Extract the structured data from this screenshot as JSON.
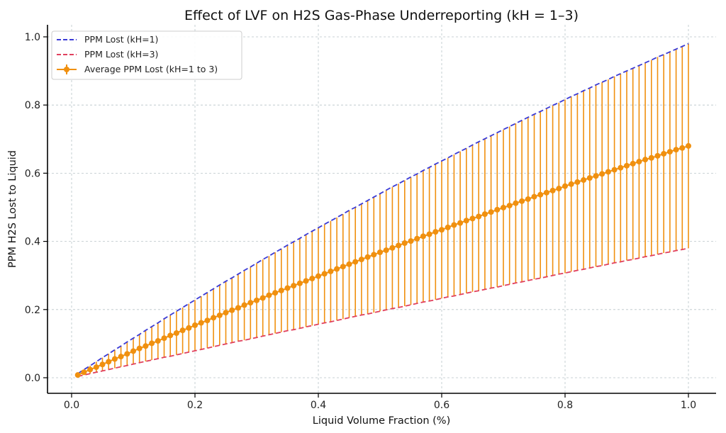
{
  "chart_data": {
    "type": "line",
    "title": "Effect of LVF on H2S Gas-Phase Underreporting (kH = 1–3)",
    "xlabel": "Liquid Volume Fraction (%)",
    "ylabel": "PPM H2S Lost to Liquid",
    "xlim": [
      -0.03,
      1.035
    ],
    "ylim": [
      -0.045,
      1.03
    ],
    "xticks": [
      "0.0",
      "0.2",
      "0.4",
      "0.6",
      "0.8",
      "1.0"
    ],
    "yticks": [
      "0.0",
      "0.2",
      "0.4",
      "0.6",
      "0.8",
      "1.0"
    ],
    "grid": true,
    "legend_position": "top-left",
    "x": [
      0.01,
      0.02,
      0.03,
      0.04,
      0.05,
      0.06,
      0.07,
      0.08,
      0.09,
      0.1,
      0.11,
      0.12,
      0.13,
      0.14,
      0.15,
      0.16,
      0.17,
      0.18,
      0.19,
      0.2,
      0.21,
      0.22,
      0.23,
      0.24,
      0.25,
      0.26,
      0.27,
      0.28,
      0.29,
      0.3,
      0.31,
      0.32,
      0.33,
      0.34,
      0.35,
      0.36,
      0.37,
      0.38,
      0.39,
      0.4,
      0.41,
      0.42,
      0.43,
      0.44,
      0.45,
      0.46,
      0.47,
      0.48,
      0.49,
      0.5,
      0.51,
      0.52,
      0.53,
      0.54,
      0.55,
      0.56,
      0.57,
      0.58,
      0.59,
      0.6,
      0.61,
      0.62,
      0.63,
      0.64,
      0.65,
      0.66,
      0.67,
      0.68,
      0.69,
      0.7,
      0.71,
      0.72,
      0.73,
      0.74,
      0.75,
      0.76,
      0.77,
      0.78,
      0.79,
      0.8,
      0.81,
      0.82,
      0.83,
      0.84,
      0.85,
      0.86,
      0.87,
      0.88,
      0.89,
      0.9,
      0.91,
      0.92,
      0.93,
      0.94,
      0.95,
      0.96,
      0.97,
      0.98,
      0.99,
      1.0
    ],
    "series": [
      {
        "name": "PPM Lost (kH=1)",
        "style": "dashed",
        "color": "#3b3bd6",
        "values": [
          0.012,
          0.024,
          0.035,
          0.047,
          0.059,
          0.07,
          0.082,
          0.093,
          0.105,
          0.116,
          0.127,
          0.139,
          0.15,
          0.161,
          0.173,
          0.184,
          0.195,
          0.206,
          0.217,
          0.228,
          0.239,
          0.25,
          0.261,
          0.272,
          0.283,
          0.293,
          0.304,
          0.315,
          0.325,
          0.336,
          0.347,
          0.357,
          0.368,
          0.378,
          0.389,
          0.399,
          0.409,
          0.42,
          0.43,
          0.44,
          0.45,
          0.46,
          0.47,
          0.48,
          0.491,
          0.5,
          0.51,
          0.52,
          0.53,
          0.54,
          0.55,
          0.56,
          0.569,
          0.579,
          0.589,
          0.598,
          0.608,
          0.617,
          0.627,
          0.636,
          0.645,
          0.655,
          0.664,
          0.673,
          0.683,
          0.692,
          0.701,
          0.71,
          0.719,
          0.728,
          0.737,
          0.746,
          0.755,
          0.764,
          0.773,
          0.781,
          0.79,
          0.799,
          0.807,
          0.816,
          0.825,
          0.833,
          0.842,
          0.85,
          0.859,
          0.867,
          0.875,
          0.884,
          0.892,
          0.9,
          0.908,
          0.916,
          0.924,
          0.932,
          0.941,
          0.948,
          0.956,
          0.964,
          0.972,
          0.98
        ]
      },
      {
        "name": "PPM Lost (kH=3)",
        "style": "dashed",
        "color": "#e0405e",
        "values": [
          0.004,
          0.008,
          0.012,
          0.016,
          0.02,
          0.024,
          0.028,
          0.032,
          0.036,
          0.04,
          0.044,
          0.048,
          0.052,
          0.056,
          0.06,
          0.063,
          0.067,
          0.071,
          0.075,
          0.079,
          0.083,
          0.087,
          0.091,
          0.095,
          0.099,
          0.103,
          0.107,
          0.11,
          0.114,
          0.118,
          0.122,
          0.126,
          0.13,
          0.134,
          0.138,
          0.141,
          0.145,
          0.149,
          0.153,
          0.157,
          0.161,
          0.164,
          0.168,
          0.172,
          0.176,
          0.18,
          0.184,
          0.187,
          0.191,
          0.195,
          0.199,
          0.203,
          0.206,
          0.21,
          0.214,
          0.218,
          0.222,
          0.225,
          0.229,
          0.233,
          0.237,
          0.24,
          0.244,
          0.248,
          0.252,
          0.255,
          0.259,
          0.263,
          0.266,
          0.27,
          0.274,
          0.278,
          0.281,
          0.285,
          0.289,
          0.292,
          0.296,
          0.3,
          0.304,
          0.307,
          0.311,
          0.315,
          0.318,
          0.322,
          0.326,
          0.329,
          0.333,
          0.337,
          0.34,
          0.344,
          0.347,
          0.351,
          0.355,
          0.358,
          0.362,
          0.366,
          0.369,
          0.373,
          0.376,
          0.38
        ]
      },
      {
        "name": "Average PPM Lost (kH=1 to 3)",
        "style": "solid-markers-errorbars",
        "color": "#f0900f",
        "values": [
          0.008,
          0.016,
          0.024,
          0.031,
          0.039,
          0.047,
          0.055,
          0.062,
          0.07,
          0.078,
          0.086,
          0.093,
          0.101,
          0.108,
          0.116,
          0.124,
          0.131,
          0.139,
          0.146,
          0.154,
          0.161,
          0.168,
          0.176,
          0.183,
          0.191,
          0.198,
          0.205,
          0.213,
          0.22,
          0.227,
          0.234,
          0.242,
          0.249,
          0.256,
          0.263,
          0.27,
          0.277,
          0.284,
          0.291,
          0.298,
          0.305,
          0.312,
          0.319,
          0.326,
          0.333,
          0.34,
          0.347,
          0.354,
          0.361,
          0.368,
          0.374,
          0.381,
          0.388,
          0.395,
          0.401,
          0.408,
          0.415,
          0.421,
          0.428,
          0.434,
          0.441,
          0.448,
          0.454,
          0.461,
          0.467,
          0.473,
          0.48,
          0.486,
          0.493,
          0.499,
          0.505,
          0.512,
          0.518,
          0.524,
          0.531,
          0.537,
          0.543,
          0.549,
          0.555,
          0.562,
          0.568,
          0.574,
          0.58,
          0.586,
          0.592,
          0.598,
          0.604,
          0.61,
          0.616,
          0.622,
          0.628,
          0.634,
          0.64,
          0.645,
          0.651,
          0.657,
          0.663,
          0.669,
          0.674,
          0.68
        ]
      }
    ]
  }
}
